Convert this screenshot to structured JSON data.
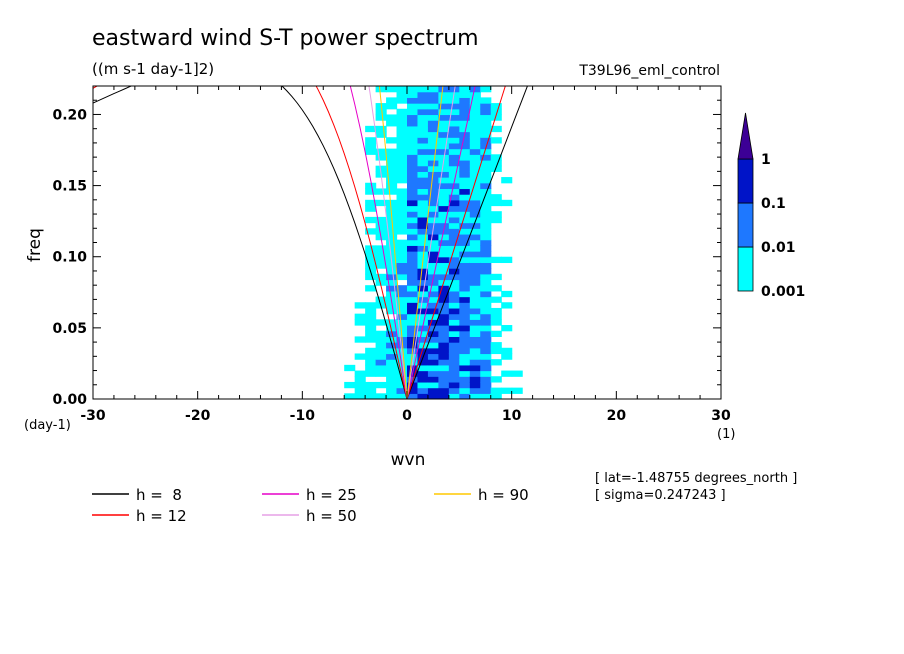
{
  "title": "eastward wind S-T power spectrum",
  "units": "((m s-1 day-1]2)",
  "run_label": "T39L96_eml_control",
  "chart_data": {
    "type": "heatmap",
    "title": "eastward wind S-T power spectrum",
    "xlabel": "wvn",
    "ylabel": "freq",
    "xunit": "(1)",
    "yunit": "(day-1)",
    "xlim": [
      -30,
      30
    ],
    "ylim": [
      0,
      0.22
    ],
    "xticks": [
      -30,
      -20,
      -10,
      0,
      10,
      20,
      30
    ],
    "yticks": [
      0.0,
      0.05,
      0.1,
      0.15,
      0.2
    ],
    "xtick_labels": [
      "-30",
      "-20",
      "-10",
      "0",
      "10",
      "20",
      "30"
    ],
    "ytick_labels": [
      "0.00",
      "0.05",
      "0.10",
      "0.15",
      "0.20"
    ],
    "colorbar": {
      "levels": [
        0.001,
        0.01,
        0.1,
        1
      ],
      "labels": [
        "0.001",
        "0.01",
        "0.1",
        "1"
      ],
      "colors": [
        "#00ffff",
        "#1e78ff",
        "#0014c8",
        "#3c0096"
      ]
    },
    "curves": [
      {
        "name": "h =  8",
        "h": 8,
        "color": "#000000"
      },
      {
        "name": "h = 12",
        "h": 12,
        "color": "#ff0000"
      },
      {
        "name": "h = 25",
        "h": 25,
        "color": "#e600c8"
      },
      {
        "name": "h = 50",
        "h": 50,
        "color": "#e6a0e6"
      },
      {
        "name": "h = 90",
        "h": 90,
        "color": "#ffc800"
      }
    ],
    "grid": false
  },
  "annotations": {
    "lat": "[ lat=-1.48755 degrees_north ]",
    "sigma": "[ sigma=0.247243 ]"
  }
}
